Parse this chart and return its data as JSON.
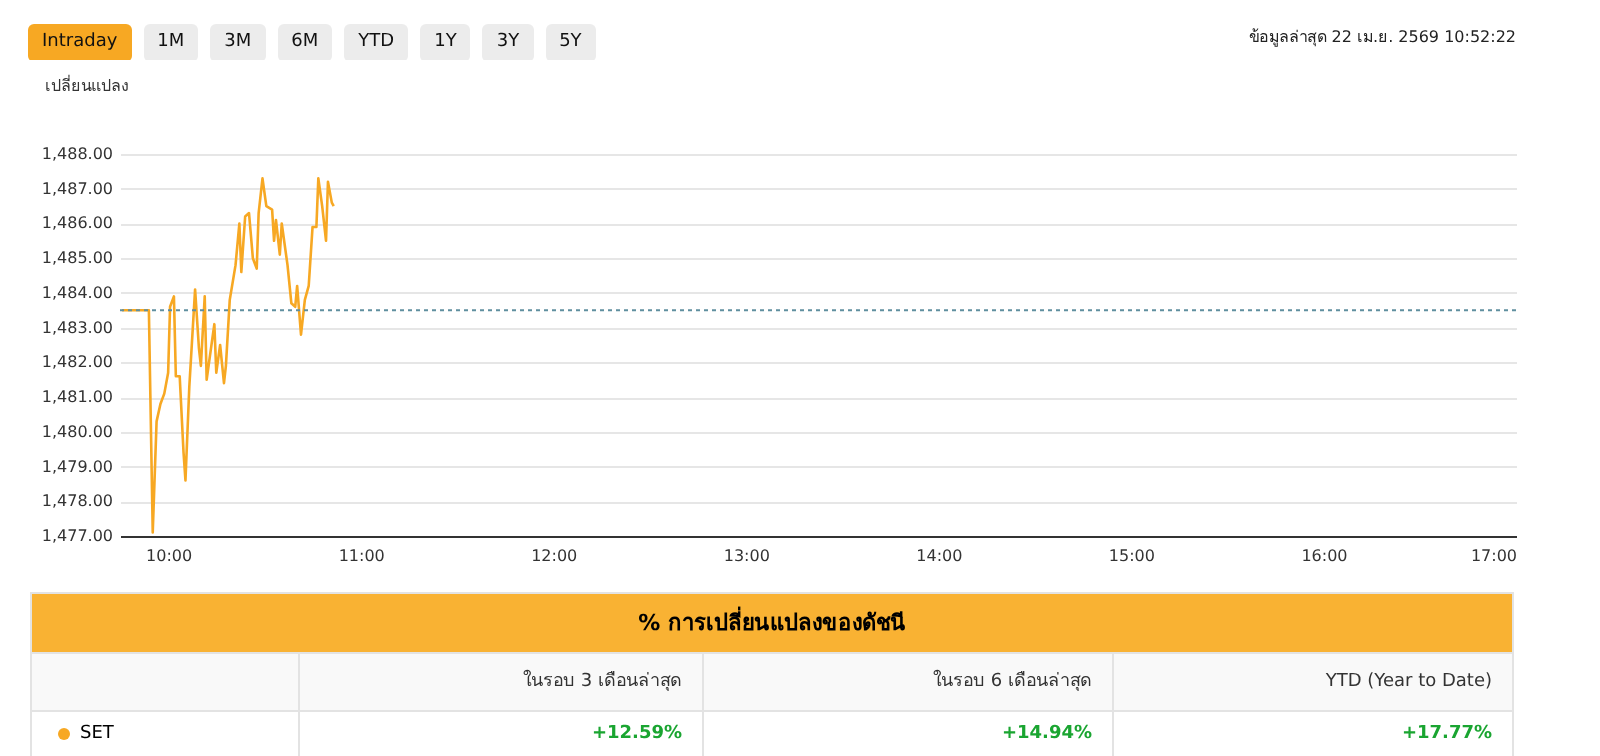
{
  "chart_data": {
    "type": "line",
    "ylabel": "เปลี่ยนแปลง",
    "annotations": [
      "Intraday",
      "1M",
      "3M",
      "6M",
      "YTD",
      "1Y",
      "3Y",
      "5Y",
      "ข้อมูลล่าสุด 22 เม.ย. 2569 10:52:22",
      "% การเปลี่ยนแปลงของดัชนี",
      "ในรอบ 3 เดือนล่าสุด",
      "ในรอบ 6 เดือนล่าสุด",
      "YTD (Year to Date)",
      "+12.59%",
      "+14.94%",
      "+17.77%"
    ],
    "x": [
      9.76,
      9.9,
      9.92,
      9.94,
      9.96,
      9.98,
      10.0,
      10.01,
      10.03,
      10.04,
      10.06,
      10.08,
      10.09,
      10.11,
      10.14,
      10.16,
      10.17,
      10.19,
      10.2,
      10.24,
      10.25,
      10.27,
      10.29,
      10.3,
      10.32,
      10.35,
      10.37,
      10.38,
      10.4,
      10.42,
      10.44,
      10.46,
      10.47,
      10.49,
      10.51,
      10.54,
      10.55,
      10.56,
      10.58,
      10.59,
      10.62,
      10.64,
      10.66,
      10.67,
      10.69,
      10.71,
      10.73,
      10.75,
      10.77,
      10.78,
      10.8,
      10.82,
      10.83,
      10.85,
      10.86
    ],
    "series": [
      {
        "name": "SET",
        "color": "#f7a823",
        "values": [
          1483.5,
          1483.5,
          1477.1,
          1480.3,
          1480.8,
          1481.1,
          1481.7,
          1483.6,
          1483.9,
          1481.6,
          1481.6,
          1479.4,
          1478.6,
          1481.3,
          1484.1,
          1482.4,
          1481.9,
          1483.9,
          1481.5,
          1483.1,
          1481.7,
          1482.5,
          1481.4,
          1481.9,
          1483.8,
          1484.8,
          1486.0,
          1484.6,
          1486.2,
          1486.3,
          1485.0,
          1484.7,
          1486.3,
          1487.3,
          1486.5,
          1486.4,
          1485.5,
          1486.1,
          1485.1,
          1486.0,
          1484.8,
          1483.7,
          1483.6,
          1484.2,
          1482.8,
          1483.8,
          1484.2,
          1485.9,
          1485.9,
          1487.3,
          1486.5,
          1485.5,
          1487.2,
          1486.6,
          1486.5
        ]
      }
    ],
    "xlim": [
      9.75,
      17
    ],
    "xticks": [
      {
        "value": 10,
        "label": "10:00"
      },
      {
        "value": 11,
        "label": "11:00"
      },
      {
        "value": 12,
        "label": "12:00"
      },
      {
        "value": 13,
        "label": "13:00"
      },
      {
        "value": 14,
        "label": "14:00"
      },
      {
        "value": 15,
        "label": "15:00"
      },
      {
        "value": 16,
        "label": "16:00"
      },
      {
        "value": 17,
        "label": "17:00"
      }
    ],
    "ylim": [
      1477,
      1488
    ],
    "yticks": [
      {
        "value": 1477,
        "label": "1,477.00"
      },
      {
        "value": 1478,
        "label": "1,478.00"
      },
      {
        "value": 1479,
        "label": "1,479.00"
      },
      {
        "value": 1480,
        "label": "1,480.00"
      },
      {
        "value": 1481,
        "label": "1,481.00"
      },
      {
        "value": 1482,
        "label": "1,482.00"
      },
      {
        "value": 1483,
        "label": "1,483.00"
      },
      {
        "value": 1484,
        "label": "1,484.00"
      },
      {
        "value": 1485,
        "label": "1,485.00"
      },
      {
        "value": 1486,
        "label": "1,486.00"
      },
      {
        "value": 1487,
        "label": "1,487.00"
      },
      {
        "value": 1488,
        "label": "1,488.00"
      }
    ],
    "ref_lines": [
      {
        "axis": "y",
        "value": 1483.5,
        "color": "#5f8f9f",
        "line_style": "dotted"
      }
    ],
    "grid": "y"
  }
}
